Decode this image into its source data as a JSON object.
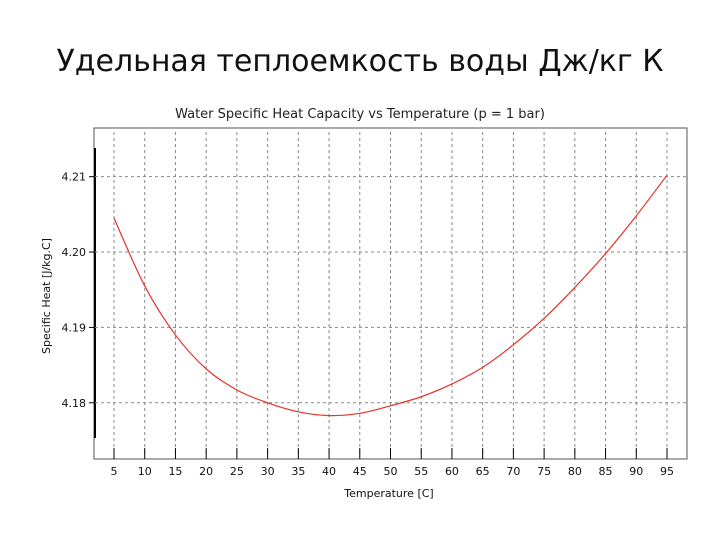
{
  "slide": {
    "title": "Удельная теплоемкость воды  Дж/кг К"
  },
  "chart_data": {
    "type": "line",
    "title": "Water Specific Heat Capacity vs Temperature (p = 1 bar)",
    "xlabel": "Temperature [C]",
    "ylabel": "Specific Heat [J/kg.C]",
    "xlim": [
      5,
      95
    ],
    "ylim": [
      4.174,
      4.215
    ],
    "xticks": [
      5,
      10,
      15,
      20,
      25,
      30,
      35,
      40,
      45,
      50,
      55,
      60,
      65,
      70,
      75,
      80,
      85,
      90,
      95
    ],
    "yticks": [
      4.18,
      4.19,
      4.2,
      4.21
    ],
    "ytick_labels": [
      "4.18",
      "4.19",
      "4.20",
      "4.21"
    ],
    "grid": true,
    "colors": {
      "line": "#e8322a",
      "grid": "#888888"
    },
    "series": [
      {
        "x": [
          5,
          10,
          15,
          20,
          25,
          30,
          35,
          40,
          45,
          50,
          55,
          60,
          65,
          70,
          75,
          80,
          85,
          90,
          95
        ],
        "values": [
          4.2045,
          4.1955,
          4.189,
          4.1845,
          4.1817,
          4.18,
          4.1788,
          4.1783,
          4.1786,
          4.1796,
          4.1808,
          4.1825,
          4.1847,
          4.1877,
          4.1912,
          4.1953,
          4.1998,
          4.2048,
          4.2102
        ]
      }
    ]
  }
}
